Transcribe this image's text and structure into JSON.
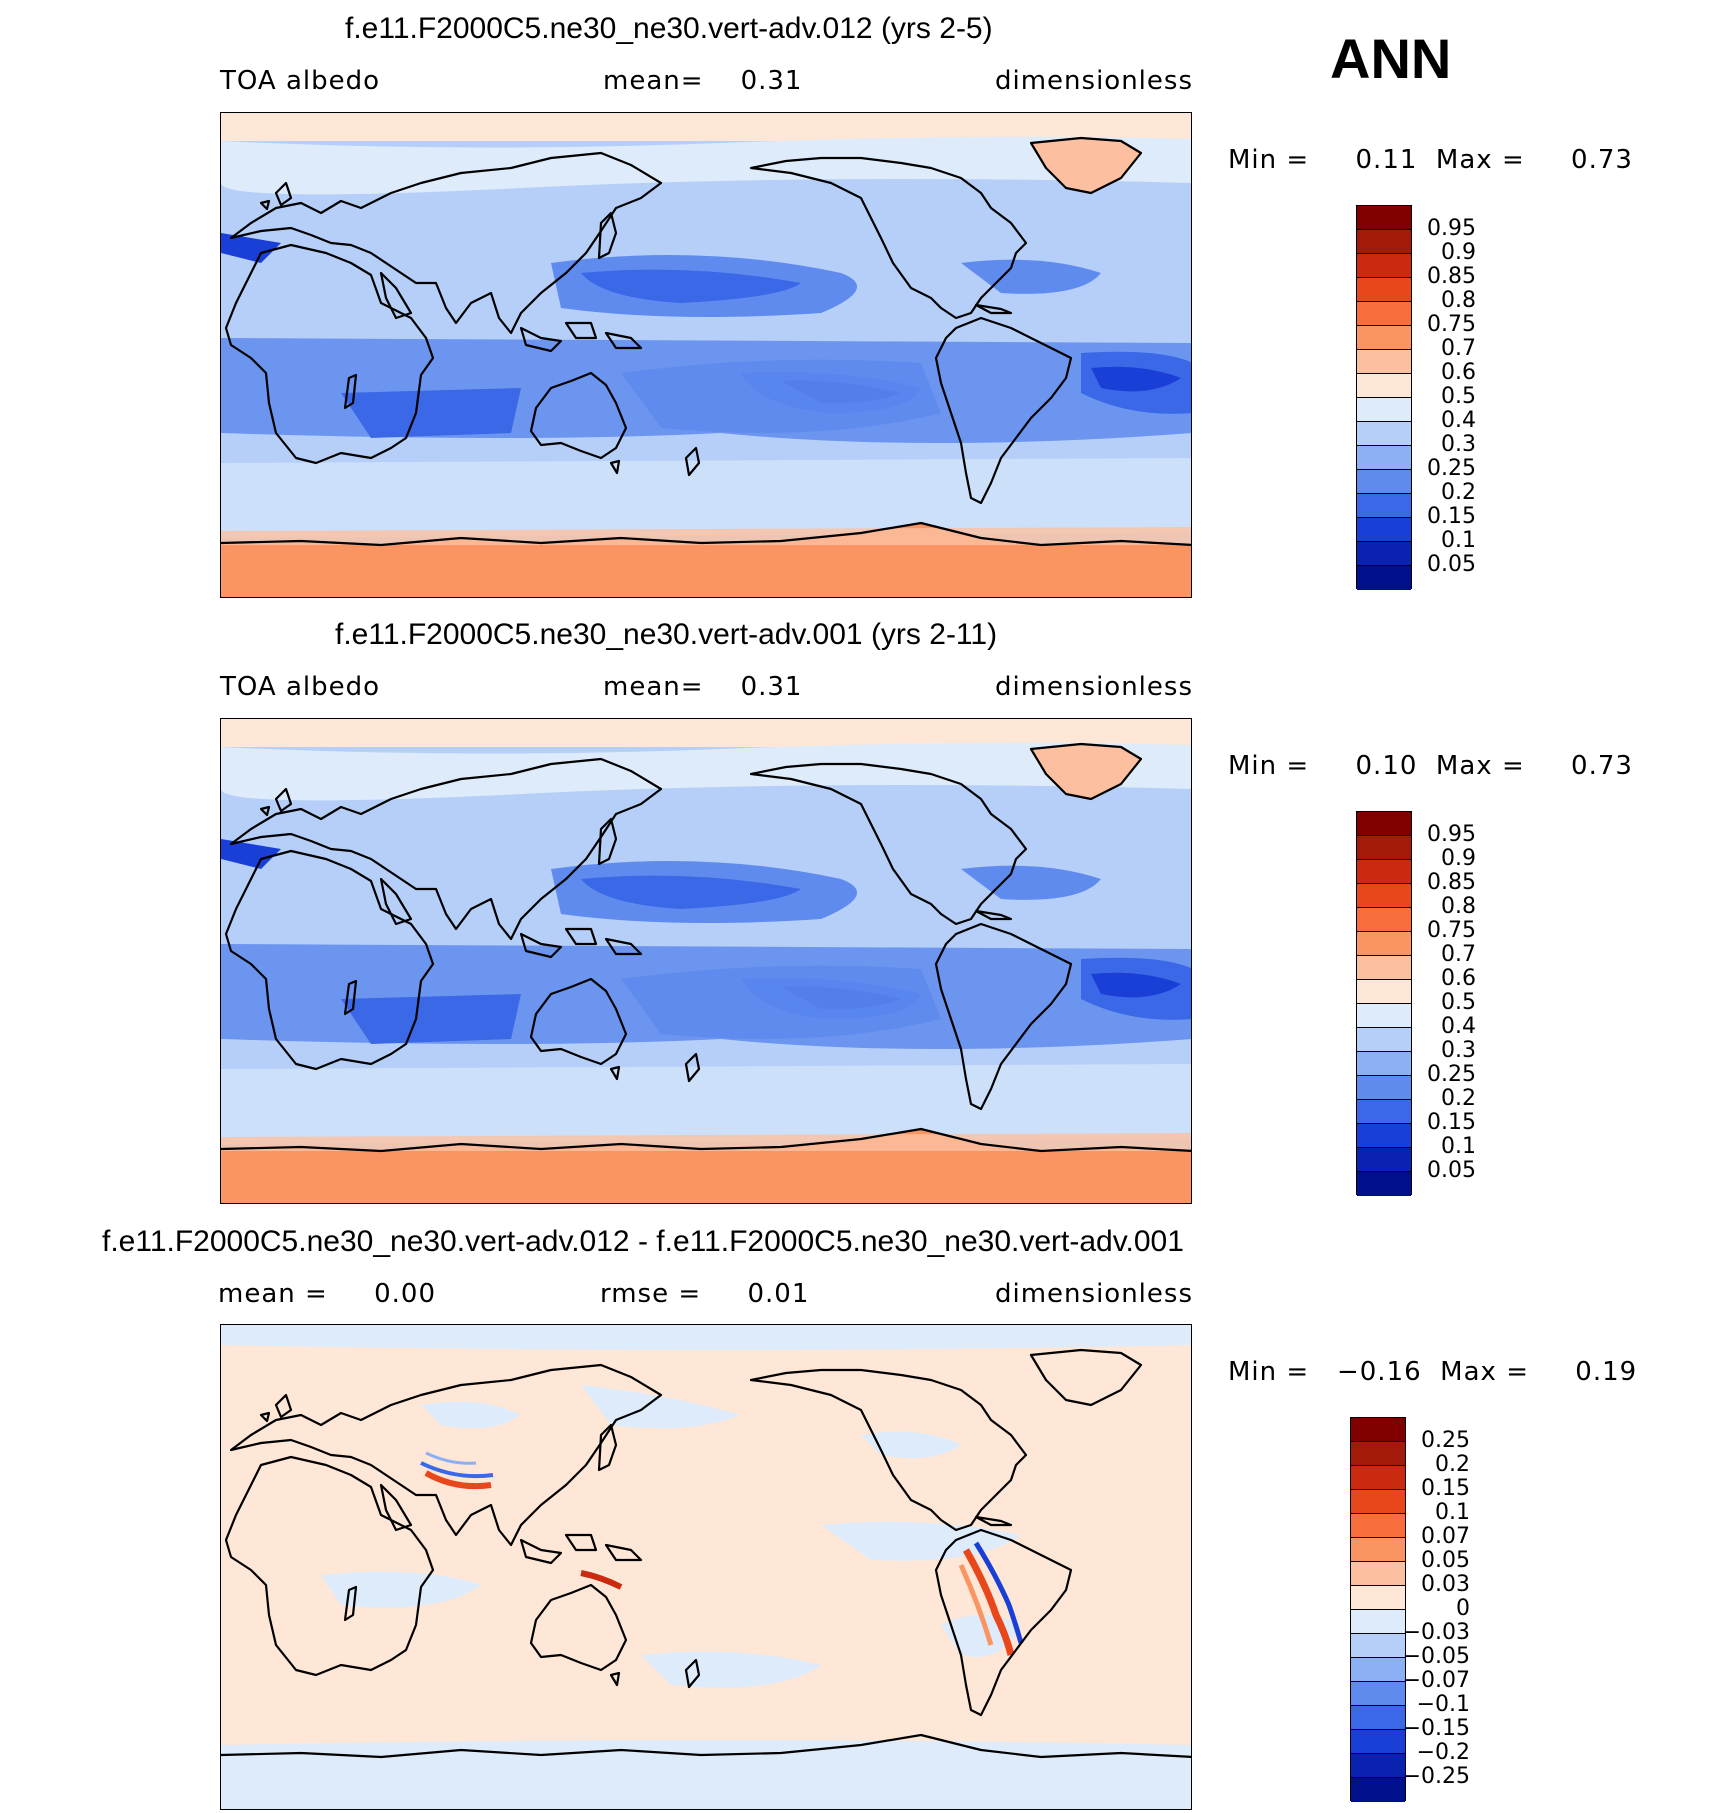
{
  "season": "ANN",
  "panels": [
    {
      "title": "f.e11.F2000C5.ne30_ne30.vert-adv.012 (yrs 2-5)",
      "left_label": "TOA albedo",
      "center_label": "mean=    0.31",
      "right_label": "dimensionless",
      "min_max": "Min =     0.11  Max =     0.73",
      "colorbar_colors": [
        "#800000",
        "#a31a0a",
        "#c92a10",
        "#e8461b",
        "#f76e3c",
        "#fb9463",
        "#fcc0a0",
        "#fee7d6",
        "#ddebfb",
        "#b5cff8",
        "#8bb1f4",
        "#5f8bee",
        "#3a68e6",
        "#1a3fd6",
        "#0a22b0",
        "#00108a"
      ],
      "colorbar_labels": [
        "0.95",
        "0.9",
        "0.85",
        "0.8",
        "0.75",
        "0.7",
        "0.6",
        "0.5",
        "0.4",
        "0.3",
        "0.25",
        "0.2",
        "0.15",
        "0.1",
        "0.05"
      ]
    },
    {
      "title": "f.e11.F2000C5.ne30_ne30.vert-adv.001 (yrs 2-11)",
      "left_label": "TOA albedo",
      "center_label": "mean=    0.31",
      "right_label": "dimensionless",
      "min_max": "Min =     0.10  Max =     0.73",
      "colorbar_colors": [
        "#800000",
        "#a31a0a",
        "#c92a10",
        "#e8461b",
        "#f76e3c",
        "#fb9463",
        "#fcc0a0",
        "#fee7d6",
        "#ddebfb",
        "#b5cff8",
        "#8bb1f4",
        "#5f8bee",
        "#3a68e6",
        "#1a3fd6",
        "#0a22b0",
        "#00108a"
      ],
      "colorbar_labels": [
        "0.95",
        "0.9",
        "0.85",
        "0.8",
        "0.75",
        "0.7",
        "0.6",
        "0.5",
        "0.4",
        "0.3",
        "0.25",
        "0.2",
        "0.15",
        "0.1",
        "0.05"
      ]
    },
    {
      "title": "f.e11.F2000C5.ne30_ne30.vert-adv.012 - f.e11.F2000C5.ne30_ne30.vert-adv.001",
      "left_label": "mean =     0.00",
      "center_label": "rmse =     0.01",
      "right_label": "dimensionless",
      "min_max": "Min =   −0.16  Max =     0.19",
      "colorbar_colors": [
        "#800000",
        "#a31a0a",
        "#c92a10",
        "#e8461b",
        "#f76e3c",
        "#fb9463",
        "#fcc0a0",
        "#fee7d6",
        "#ddebfb",
        "#b5cff8",
        "#8bb1f4",
        "#5f8bee",
        "#3a68e6",
        "#1a3fd6",
        "#0a22b0",
        "#00108a"
      ],
      "colorbar_labels": [
        "0.25",
        "0.2",
        "0.15",
        "0.1",
        "0.07",
        "0.05",
        "0.03",
        "0",
        "−0.03",
        "−0.05",
        "−0.07",
        "−0.1",
        "−0.15",
        "−0.2",
        "−0.25"
      ]
    }
  ]
}
